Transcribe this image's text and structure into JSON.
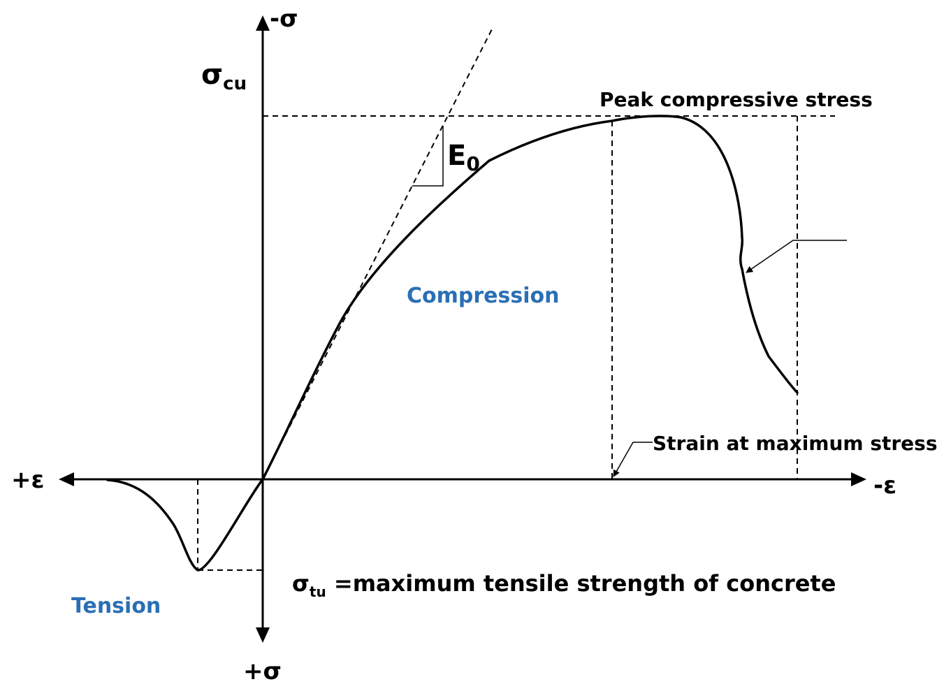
{
  "axes": {
    "y_top_label": "-σ",
    "y_bottom_label": "+σ",
    "x_left_label": "+ε",
    "x_right_label": "-ε"
  },
  "labels": {
    "sigma_cu_symbol": "σ",
    "sigma_cu_sub": "cu",
    "peak": "Peak compressive stress",
    "e0_symbol": "E",
    "e0_sub": "0",
    "compression": "Compression",
    "tension": "Tension",
    "strain_at_max": "Strain at maximum stress",
    "sigma_tu_symbol": "σ",
    "sigma_tu_sub": "tu",
    "sigma_tu_text": " =maximum tensile strength of concrete"
  },
  "colors": {
    "ink": "#000000",
    "region_label": "#2a6fb5"
  }
}
